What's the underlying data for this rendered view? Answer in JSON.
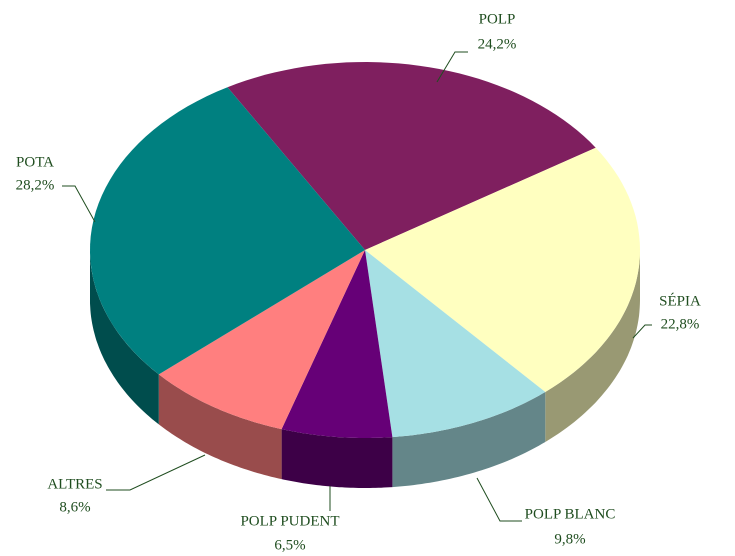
{
  "chart_data": {
    "type": "pie",
    "categories": [
      "POLP",
      "SÉPIA",
      "POLP BLANC",
      "POLP PUDENT",
      "ALTRES",
      "POTA"
    ],
    "values": [
      24.2,
      22.8,
      9.8,
      6.5,
      8.6,
      28.2
    ],
    "value_labels": [
      "24,2%",
      "22,8%",
      "9,8%",
      "6,5%",
      "8,6%",
      "28,2%"
    ],
    "colors": [
      "#7f1f5f",
      "#ffffc0",
      "#a6e0e4",
      "#660077",
      "#ff7f7f",
      "#008080"
    ]
  }
}
